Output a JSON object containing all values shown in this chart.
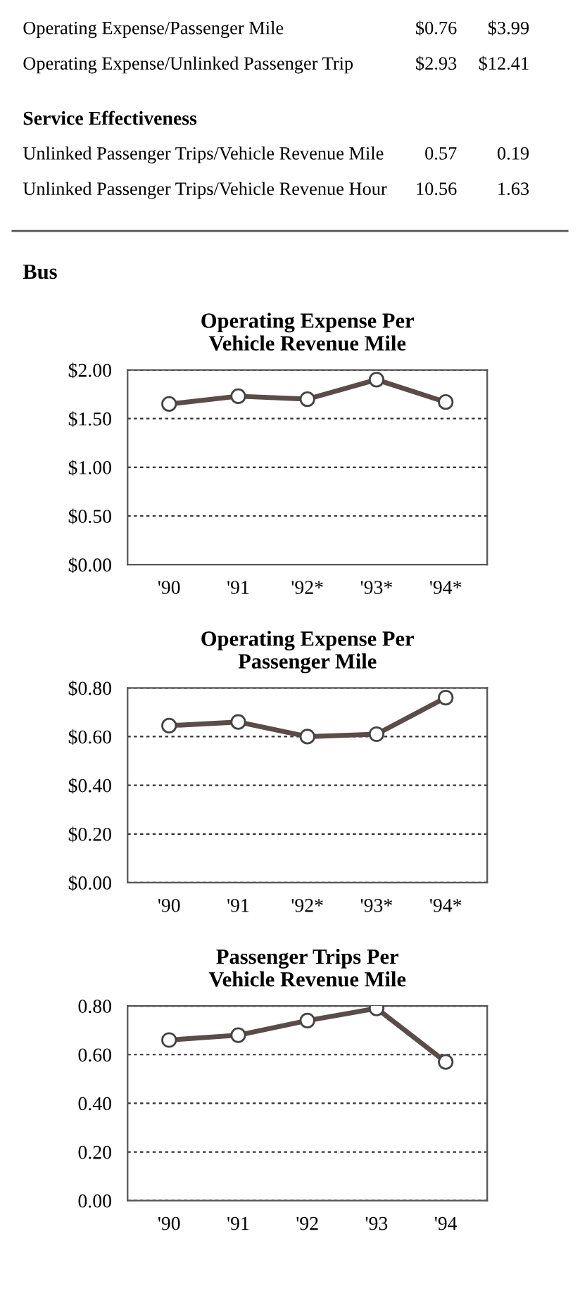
{
  "chart_data": [
    {
      "type": "other",
      "annotations": [
        "Operating Expense/Passenger Mile",
        "$0.76",
        "$3.99",
        "Operating Expense/Unlinked Passenger Trip",
        "$2.93",
        "$12.41",
        "Service Effectiveness",
        "Unlinked Passenger Trips/Vehicle Revenue Mile",
        "0.57",
        "0.19",
        "Unlinked Passenger Trips/Vehicle Revenue Hour",
        "10.56",
        "1.63",
        "Bus"
      ]
    },
    {
      "type": "line",
      "title": "Operating Expense Per\nVehicle Revenue Mile",
      "categories": [
        "'90",
        "'91",
        "'92*",
        "'93*",
        "'94*"
      ],
      "series": [
        {
          "color": "#5a4c4a",
          "values": [
            1.65,
            1.73,
            1.7,
            1.9,
            1.67
          ]
        }
      ],
      "ylim": [
        0,
        2
      ],
      "yticks": [
        {
          "value": 0,
          "label": "$0.00"
        },
        {
          "value": 0.5,
          "label": "$0.50"
        },
        {
          "value": 1,
          "label": "$1.00"
        },
        {
          "value": 1.5,
          "label": "$1.50"
        },
        {
          "value": 2,
          "label": "$2.00"
        }
      ],
      "grid": "y",
      "marker": "circle",
      "line_style": "solid"
    },
    {
      "type": "line",
      "title": "Operating Expense Per\nPassenger Mile",
      "categories": [
        "'90",
        "'91",
        "'92*",
        "'93*",
        "'94*"
      ],
      "series": [
        {
          "color": "#5a4c4a",
          "values": [
            0.645,
            0.66,
            0.6,
            0.61,
            0.76
          ]
        }
      ],
      "ylim": [
        0,
        0.8
      ],
      "yticks": [
        {
          "value": 0,
          "label": "$0.00"
        },
        {
          "value": 0.2,
          "label": "$0.20"
        },
        {
          "value": 0.4,
          "label": "$0.40"
        },
        {
          "value": 0.6,
          "label": "$0.60"
        },
        {
          "value": 0.8,
          "label": "$0.80"
        }
      ],
      "grid": "y",
      "marker": "circle",
      "line_style": "solid"
    },
    {
      "type": "line",
      "title": "Passenger Trips Per\nVehicle Revenue Mile",
      "categories": [
        "'90",
        "'91",
        "'92",
        "'93",
        "'94"
      ],
      "series": [
        {
          "color": "#5a4c4a",
          "values": [
            0.66,
            0.68,
            0.74,
            0.79,
            0.57
          ]
        }
      ],
      "ylim": [
        0,
        0.8
      ],
      "yticks": [
        {
          "value": 0,
          "label": "0.00"
        },
        {
          "value": 0.2,
          "label": "0.20"
        },
        {
          "value": 0.4,
          "label": "0.40"
        },
        {
          "value": 0.6,
          "label": "0.60"
        },
        {
          "value": 0.8,
          "label": "0.80"
        }
      ],
      "grid": "y",
      "marker": "circle",
      "line_style": "solid"
    }
  ]
}
